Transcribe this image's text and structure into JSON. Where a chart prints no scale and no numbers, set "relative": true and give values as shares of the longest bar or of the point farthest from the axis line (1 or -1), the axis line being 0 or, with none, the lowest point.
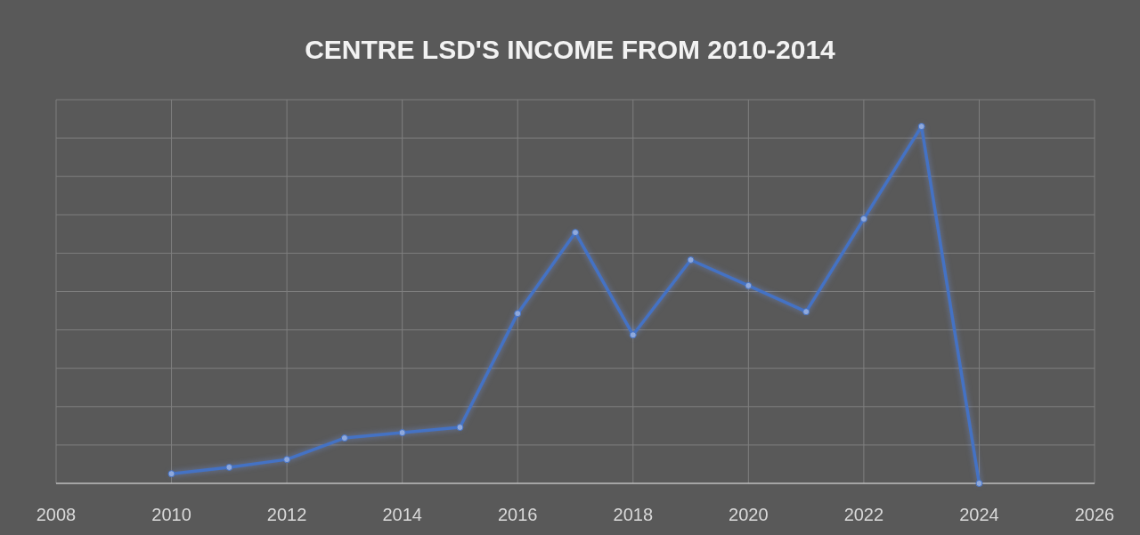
{
  "chart_data": {
    "type": "line",
    "title": "CENTRE LSD'S INCOME FROM 2010-2014",
    "relative": true,
    "x": [
      2010,
      2011,
      2012,
      2013,
      2014,
      2015,
      2016,
      2017,
      2018,
      2019,
      2020,
      2021,
      2022,
      2023,
      2024
    ],
    "series": [
      {
        "color": "#4472c4",
        "values": [
          0.027,
          0.045,
          0.067,
          0.127,
          0.142,
          0.157,
          0.476,
          0.703,
          0.416,
          0.626,
          0.554,
          0.481,
          0.741,
          1,
          0
        ]
      }
    ],
    "xlim": [
      2008,
      2026
    ],
    "xticks": [
      2008,
      2010,
      2012,
      2014,
      2016,
      2018,
      2020,
      2022,
      2024,
      2026
    ],
    "grid": true,
    "marker": "circle",
    "line_style": "solid",
    "tick_labels": "x"
  }
}
